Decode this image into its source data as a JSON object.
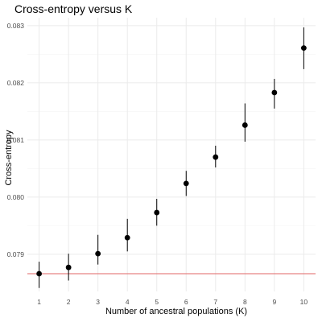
{
  "chart_data": {
    "type": "scatter",
    "title": "Cross-entropy versus K",
    "xlabel": "Number of ancestral populations (K)",
    "ylabel": "Cross-entropy",
    "x": [
      1,
      2,
      3,
      4,
      5,
      6,
      7,
      8,
      9,
      10
    ],
    "series": [
      {
        "values": [
          0.07866,
          0.07877,
          0.07901,
          0.07929,
          0.07973,
          0.08024,
          0.0807,
          0.08126,
          0.08183,
          0.08261
        ],
        "error_low": [
          0.07841,
          0.07854,
          0.07882,
          0.07905,
          0.0795,
          0.08002,
          0.08052,
          0.08097,
          0.08155,
          0.08224
        ],
        "error_high": [
          0.07887,
          0.07901,
          0.07934,
          0.07962,
          0.07997,
          0.08046,
          0.0809,
          0.08164,
          0.08207,
          0.08297
        ]
      }
    ],
    "reference_line": {
      "y": 0.07866,
      "color": "#e06666"
    },
    "xlim": [
      0.6,
      10.4
    ],
    "ylim": [
      0.07835,
      0.08314
    ],
    "x_ticks": [
      "1",
      "2",
      "3",
      "4",
      "5",
      "6",
      "7",
      "8",
      "9",
      "10"
    ],
    "y_ticks": [
      "0.079",
      "0.080",
      "0.081",
      "0.082",
      "0.083"
    ],
    "grid": true,
    "point_color": "#000000"
  }
}
